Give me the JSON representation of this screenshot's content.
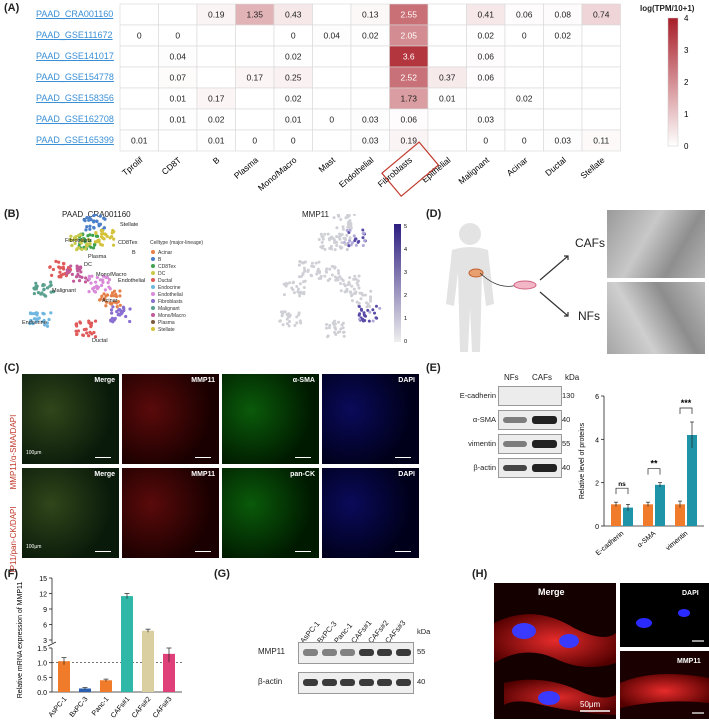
{
  "panels": {
    "a": "(A)",
    "b": "(B)",
    "c": "(C)",
    "d": "(D)",
    "e": "(E)",
    "f": "(F)",
    "g": "(G)",
    "h": "(H)"
  },
  "heatmap": {
    "colorbar_title": "log(TPM/10+1)",
    "colorbar_ticks": [
      "4",
      "3",
      "2",
      "1",
      "0"
    ],
    "highlighted_column": "Fibroblasts",
    "datasets": [
      "PAAD_CRA001160",
      "PAAD_GSE111672",
      "PAAD_GSE141017",
      "PAAD_GSE154778",
      "PAAD_GSE158356",
      "PAAD_GSE162708",
      "PAAD_GSE165399"
    ],
    "celltypes": [
      "Tprolif",
      "CD8T",
      "B",
      "Plasma",
      "Mono/Macro",
      "Mast",
      "Endothelial",
      "Fibroblasts",
      "Epithelial",
      "Malignant",
      "Acinar",
      "Ductal",
      "Stellate"
    ],
    "values": [
      [
        "",
        "",
        "0.19",
        "1.35",
        "0.43",
        "",
        "0.13",
        "2.55",
        "",
        "0.41",
        "0.06",
        "0.08",
        "0.74"
      ],
      [
        "0",
        "0",
        "",
        "",
        "0",
        "0.04",
        "0.02",
        "2.05",
        "",
        "0.02",
        "0",
        "0.02",
        ""
      ],
      [
        "",
        "0.04",
        "",
        "",
        "0.02",
        "",
        "",
        "3.6",
        "",
        "0.06",
        "",
        "",
        ""
      ],
      [
        "",
        "0.07",
        "",
        "0.17",
        "0.25",
        "",
        "",
        "2.52",
        "0.37",
        "0.06",
        "",
        "",
        ""
      ],
      [
        "",
        "0.01",
        "0.17",
        "",
        "0.02",
        "",
        "",
        "1.73",
        "0.01",
        "",
        "0.02",
        "",
        ""
      ],
      [
        "",
        "0.01",
        "0.02",
        "",
        "0.01",
        "0",
        "0.03",
        "0.06",
        "",
        "0.03",
        "",
        "",
        ""
      ],
      [
        "0.01",
        "",
        "0.01",
        "0",
        "0",
        "",
        "0.03",
        "0.19",
        "",
        "0",
        "0",
        "0.03",
        "0.11"
      ]
    ]
  },
  "umap": {
    "left_title": "PAAD_CRA001160",
    "right_title": "MMP11",
    "legend_title": "Celltype (major-lineage)",
    "legend_items": [
      "Acinar",
      "B",
      "CD8Tex",
      "DC",
      "Ductal",
      "Endocrine",
      "Endothelial",
      "Fibroblasts",
      "Malignant",
      "Mono/Macro",
      "Plasma",
      "Stellate"
    ],
    "legend_colors": [
      "#e6804a",
      "#4a7fc9",
      "#3fa34d",
      "#c9c94a",
      "#e05a5a",
      "#6fb7e0",
      "#d98ad9",
      "#8a6fd1",
      "#5aa08f",
      "#c25a9a",
      "#7a5a3a",
      "#d4c23a"
    ],
    "cluster_labels": [
      "Fibroblasts",
      "Stellate",
      "CD8Tex",
      "Plasma",
      "B",
      "DC",
      "Mono/Macro",
      "Malignant",
      "Endothelial",
      "Acinar",
      "Endocrine",
      "Ductal"
    ],
    "colorbar_ticks": [
      "5",
      "4",
      "3",
      "2",
      "1",
      "0"
    ]
  },
  "schematic": {
    "caf_label": "CAFs",
    "nf_label": "NFs"
  },
  "if_panel": {
    "row1_side": "MMP11/α-SMA/DAPI",
    "row2_side": "MMP11/pan-CK/DAPI",
    "row1_titles": [
      "Merge",
      "MMP11",
      "α-SMA",
      "DAPI"
    ],
    "row2_titles": [
      "Merge",
      "MMP11",
      "pan-CK",
      "DAPI"
    ],
    "scale": "100μm"
  },
  "western_e": {
    "lanes": [
      "NFs",
      "CAFs"
    ],
    "kda": "kDa",
    "rows": [
      {
        "name": "E-cadherin",
        "kda": "130"
      },
      {
        "name": "α-SMA",
        "kda": "40"
      },
      {
        "name": "vimentin",
        "kda": "55"
      },
      {
        "name": "β-actin",
        "kda": "40"
      }
    ]
  },
  "chart_data": [
    {
      "type": "bar",
      "ylabel": "Relative level of proteins",
      "categories": [
        "E-cadherin",
        "α-SMA",
        "vimentin"
      ],
      "series": [
        {
          "name": "NFs",
          "values": [
            1.0,
            1.0,
            1.0
          ],
          "error": [
            0.1,
            0.1,
            0.15
          ]
        },
        {
          "name": "CAFs",
          "values": [
            0.85,
            1.9,
            4.2
          ],
          "error": [
            0.15,
            0.1,
            0.6
          ]
        }
      ],
      "significance": [
        "ns",
        "**",
        "***"
      ],
      "yticks": [
        "0",
        "2",
        "4",
        "6"
      ],
      "ylim": [
        0,
        6
      ],
      "colors": [
        "#f07b2a",
        "#1f93a8"
      ]
    },
    {
      "type": "bar",
      "ylabel": "Relative mRNA expression of MMP11",
      "categories": [
        "AsPC-1",
        "BxPC-3",
        "Panc-1",
        "CAFs#1",
        "CAFs#2",
        "CAFs#3"
      ],
      "values": [
        1.05,
        0.12,
        0.4,
        11.5,
        4.8,
        1.3
      ],
      "error": [
        0.12,
        0.03,
        0.04,
        0.5,
        0.3,
        0.28
      ],
      "yticks_lower": [
        "0.0",
        "0.5",
        "1.0",
        "1.5"
      ],
      "yticks_upper": [
        "3",
        "6",
        "9",
        "12",
        "15"
      ],
      "reference_line": 1.0,
      "colors": [
        "#f07b2a",
        "#2a5fb0",
        "#f07b2a",
        "#2fb8a8",
        "#d9cfa0",
        "#e0407a"
      ]
    }
  ],
  "western_g": {
    "lanes": [
      "AsPC-1",
      "BxPC-3",
      "Panc-1",
      "CAFs#1",
      "CAFs#2",
      "CAFs#3"
    ],
    "kda": "kDa",
    "rows": [
      {
        "name": "MMP11",
        "kda": "55"
      },
      {
        "name": "β-actin",
        "kda": "40"
      }
    ]
  },
  "confocal": {
    "merge": "Merge",
    "dapi": "DAPI",
    "mmp11": "MMP11",
    "scale": "50μm"
  }
}
